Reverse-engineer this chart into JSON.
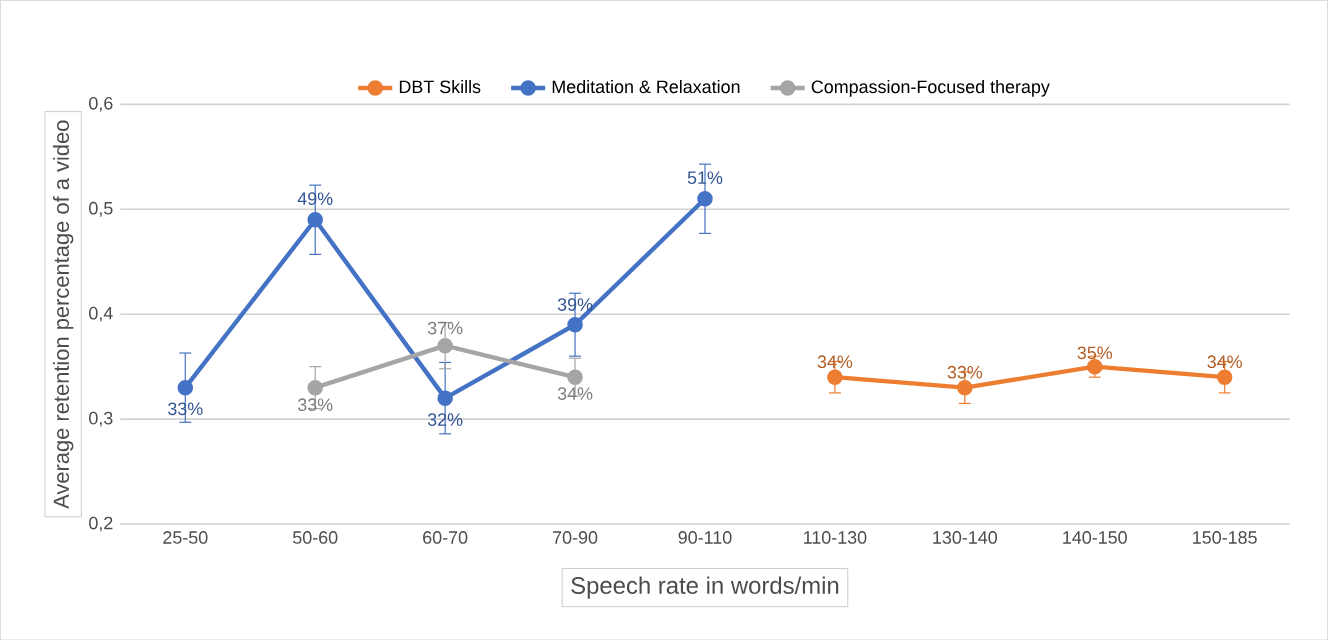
{
  "chart_data": {
    "type": "line",
    "xlabel": "Speech rate in words/min",
    "ylabel": "Average retention percentage of a video",
    "categories": [
      "25-50",
      "50-60",
      "60-70",
      "70-90",
      "90-110",
      "110-130",
      "130-140",
      "140-150",
      "150-185"
    ],
    "series": [
      {
        "name": "DBT Skills",
        "color": "#ed7d31",
        "values": [
          null,
          null,
          null,
          null,
          null,
          0.34,
          0.33,
          0.35,
          0.34
        ],
        "errors": [
          null,
          null,
          null,
          null,
          null,
          0.015,
          0.015,
          0.01,
          0.015
        ],
        "value_labels": [
          null,
          null,
          null,
          null,
          null,
          "34%",
          "33%",
          "35%",
          "34%"
        ]
      },
      {
        "name": "Meditation & Relaxation",
        "color": "#4472c4",
        "values": [
          0.33,
          0.49,
          0.32,
          0.39,
          0.51,
          null,
          null,
          null,
          null
        ],
        "errors": [
          0.033,
          0.033,
          0.034,
          0.03,
          0.033,
          null,
          null,
          null,
          null
        ],
        "value_labels": [
          "33%",
          "49%",
          "32%",
          "39%",
          "51%",
          null,
          null,
          null,
          null
        ]
      },
      {
        "name": "Compassion-Focused therapy",
        "color": "#a5a5a5",
        "values": [
          null,
          0.33,
          0.37,
          0.34,
          null,
          null,
          null,
          null,
          null
        ],
        "errors": [
          null,
          0.02,
          0.022,
          0.018,
          null,
          null,
          null,
          null,
          null
        ],
        "value_labels": [
          null,
          "33%",
          "37%",
          "34%",
          null,
          null,
          null,
          null,
          null
        ]
      }
    ],
    "ylim": [
      0.2,
      0.6
    ],
    "yticks": [
      {
        "value": 0.2,
        "label": "0,2"
      },
      {
        "value": 0.3,
        "label": "0,3"
      },
      {
        "value": 0.4,
        "label": "0,4"
      },
      {
        "value": 0.5,
        "label": "0,5"
      },
      {
        "value": 0.6,
        "label": "0,6"
      }
    ],
    "grid": "y",
    "legend": "top",
    "marker": "circle",
    "line_style": "solid"
  }
}
